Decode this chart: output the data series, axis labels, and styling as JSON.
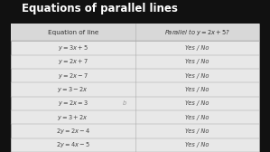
{
  "title": "Equations of parallel lines",
  "title_color": "#ffffff",
  "bg_color": "#111111",
  "table_bg": "#e8e8e8",
  "table_border": "#aaaaaa",
  "header_text_color": "#333333",
  "cell_text_color": "#444444",
  "col1_header": "Equation of line",
  "col2_header": "Parallel to $y = 2x + 5$?",
  "equations": [
    "$y = 3x + 5$",
    "$y = 2x + 7$",
    "$y = 2x - 7$",
    "$y = 3 - 2x$",
    "$y = 2x = 3$",
    "$y = 3 + 2x$",
    "$2y = 2x - 4$",
    "$2y = 4x - 5$"
  ],
  "answers": [
    "Yes / No",
    "Yes / No",
    "Yes / No",
    "Yes / No",
    "Yes / No",
    "Yes / No",
    "Yes / No",
    "Yes / No"
  ],
  "watermark": "b",
  "watermark_row": 4,
  "title_fontsize": 8.5,
  "header_fontsize": 5.2,
  "cell_fontsize": 4.8
}
